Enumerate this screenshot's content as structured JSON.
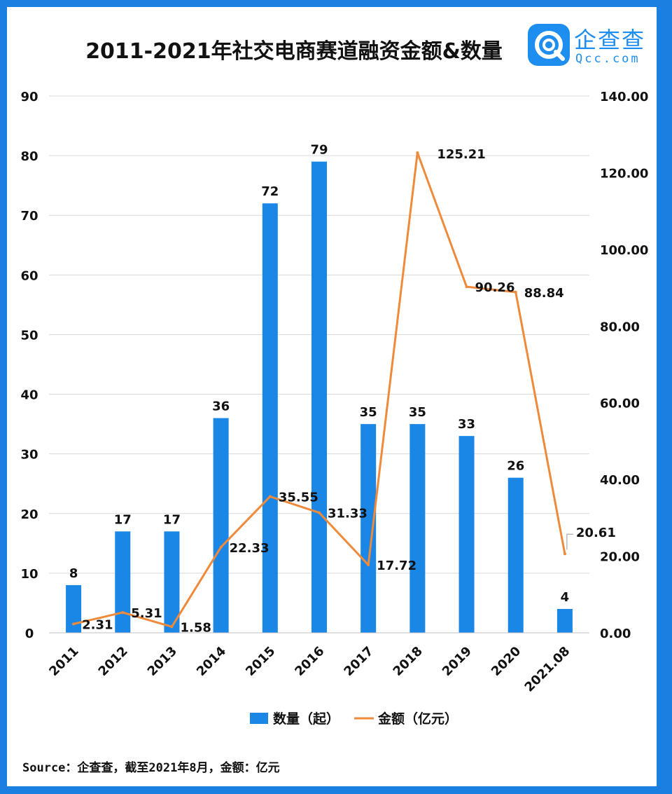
{
  "title": "2011-2021年社交电商赛道融资金额&数量",
  "logo": {
    "cn": "企查查",
    "en": "Qcc.com"
  },
  "source": "Source：企查查，截至2021年8月，金额：亿元",
  "colors": {
    "bar": "#1a86e6",
    "line": "#ef8a3a",
    "border": "#1a7fe0",
    "grid": "#d9d9d9"
  },
  "chart_data": {
    "type": "bar+line",
    "categories": [
      "2011",
      "2012",
      "2013",
      "2014",
      "2015",
      "2016",
      "2017",
      "2018",
      "2019",
      "2020",
      "2021.08"
    ],
    "series": [
      {
        "name": "数量（起）",
        "type": "bar",
        "axis": "left",
        "values": [
          8,
          17,
          17,
          36,
          72,
          79,
          35,
          35,
          33,
          26,
          4
        ],
        "labels": [
          "8",
          "17",
          "17",
          "36",
          "72",
          "79",
          "35",
          "35",
          "33",
          "26",
          "4"
        ]
      },
      {
        "name": "金额（亿元）",
        "type": "line",
        "axis": "right",
        "values": [
          2.31,
          5.31,
          1.58,
          22.33,
          35.55,
          31.33,
          17.72,
          125.21,
          90.26,
          88.84,
          20.61
        ],
        "labels": [
          "2.31",
          "5.31",
          "1.58",
          "22.33",
          "35.55",
          "31.33",
          "17.72",
          "125.21",
          "90.26",
          "88.84",
          "20.61"
        ]
      }
    ],
    "y_left": {
      "min": 0,
      "max": 90,
      "ticks": [
        "0",
        "10",
        "20",
        "30",
        "40",
        "50",
        "60",
        "70",
        "80",
        "90"
      ]
    },
    "y_right": {
      "min": 0,
      "max": 140,
      "ticks": [
        "0.00",
        "20.00",
        "40.00",
        "60.00",
        "80.00",
        "100.00",
        "120.00",
        "140.00"
      ]
    },
    "grid": true,
    "legend": "bottom"
  }
}
